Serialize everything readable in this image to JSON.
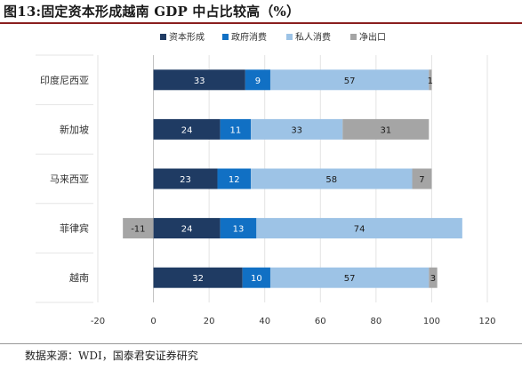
{
  "title": "图13:固定资本形成越南 GDP 中占比较高（%）",
  "source": "数据来源：WDI，国泰君安证券研究",
  "colors": {
    "资本形成": "#1f3b63",
    "政府消费": "#1170c4",
    "私人消费": "#9dc3e6",
    "净出口": "#a5a5a5"
  },
  "chart_data": {
    "type": "bar",
    "orientation": "horizontal",
    "stacked": true,
    "categories": [
      "印度尼西亚",
      "新加坡",
      "马来西亚",
      "菲律宾",
      "越南"
    ],
    "series": [
      {
        "name": "资本形成",
        "values": [
          33,
          24,
          23,
          24,
          32
        ]
      },
      {
        "name": "政府消费",
        "values": [
          9,
          11,
          12,
          13,
          10
        ]
      },
      {
        "name": "私人消费",
        "values": [
          57,
          33,
          58,
          74,
          57
        ]
      },
      {
        "name": "净出口",
        "values": [
          1,
          31,
          7,
          -11,
          3
        ]
      }
    ],
    "xlim": [
      -20,
      120
    ],
    "xticks": [
      -20,
      0,
      20,
      40,
      60,
      80,
      100,
      120
    ],
    "legend": "top",
    "grid": true
  }
}
